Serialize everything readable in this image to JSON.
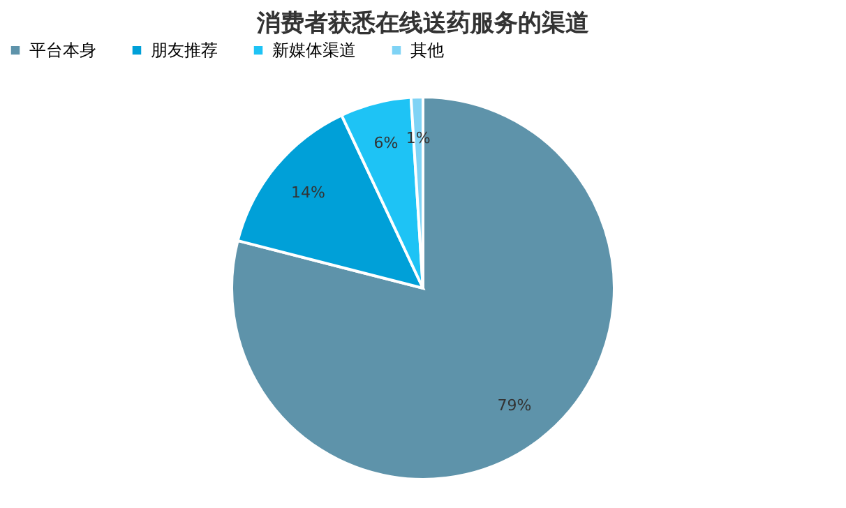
{
  "chart_data": {
    "type": "pie",
    "title": "消费者获悉在线送药服务的渠道",
    "categories": [
      "平台本身",
      "朋友推荐",
      "新媒体渠道",
      "其他"
    ],
    "values": [
      79,
      14,
      6,
      1
    ],
    "colors": [
      "#5e93aa",
      "#00a0d8",
      "#1ec3f5",
      "#7fd3f5"
    ],
    "value_labels": [
      "79%",
      "14%",
      "6%",
      "1%"
    ],
    "legend": "top"
  }
}
